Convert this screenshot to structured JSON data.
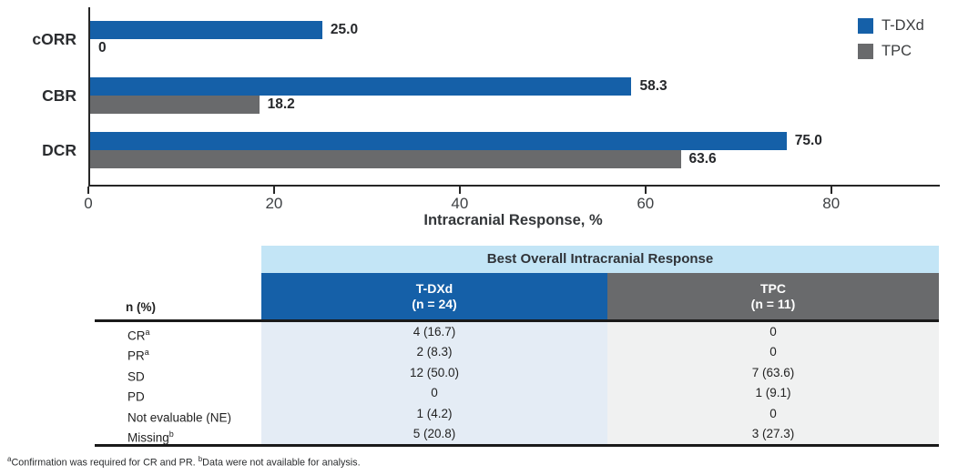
{
  "colors": {
    "tdxd_blue": "#1560a8",
    "tpc_gray": "#696a6c",
    "table_title_band": "#c3e5f6",
    "tdxd_body_fill": "#e4ecf5",
    "tpc_body_fill": "#f0f1f1",
    "axis_line": "#262626"
  },
  "chart_data": {
    "type": "bar",
    "orientation": "horizontal",
    "categories": [
      "cORR",
      "CBR",
      "DCR"
    ],
    "series": [
      {
        "name": "T-DXd",
        "color": "#1560a8",
        "values": [
          25.0,
          58.3,
          75.0
        ]
      },
      {
        "name": "TPC",
        "color": "#696a6c",
        "values": [
          0,
          18.2,
          63.6
        ]
      }
    ],
    "value_labels": [
      [
        "25.0",
        "58.3",
        "75.0"
      ],
      [
        "0",
        "18.2",
        "63.6"
      ]
    ],
    "title": "",
    "xlabel": "Intracranial Response, %",
    "ylabel": "",
    "xlim": [
      0,
      91.5
    ],
    "xticks": [
      0,
      20,
      40,
      60,
      80
    ],
    "grid": false,
    "legend_position": "top-right"
  },
  "legend": {
    "items": [
      {
        "label": "T-DXd",
        "color": "#1560a8"
      },
      {
        "label": "TPC",
        "color": "#696a6c"
      }
    ]
  },
  "table": {
    "title": "Best Overall Intracranial Response",
    "row_header": "n (%)",
    "columns": [
      {
        "name": "T-DXd",
        "sub": "(n = 24)",
        "color": "#1560a8"
      },
      {
        "name": "TPC",
        "sub": "(n = 11)",
        "color": "#696a6c"
      }
    ],
    "rows": [
      {
        "label": "CR",
        "sup": "a",
        "tdxd": "4 (16.7)",
        "tpc": "0"
      },
      {
        "label": "PR",
        "sup": "a",
        "tdxd": "2 (8.3)",
        "tpc": "0"
      },
      {
        "label": "SD",
        "sup": "",
        "tdxd": "12 (50.0)",
        "tpc": "7 (63.6)"
      },
      {
        "label": "PD",
        "sup": "",
        "tdxd": "0",
        "tpc": "1 (9.1)"
      },
      {
        "label": "Not evaluable (NE)",
        "sup": "",
        "tdxd": "1 (4.2)",
        "tpc": "0"
      },
      {
        "label": "Missing",
        "sup": "b",
        "tdxd": "5 (20.8)",
        "tpc": "3 (27.3)"
      }
    ]
  },
  "footnote": {
    "sup_a": "a",
    "text_a": "Confirmation was required for CR and PR. ",
    "sup_b": "b",
    "text_b": "Data were not available for analysis."
  }
}
